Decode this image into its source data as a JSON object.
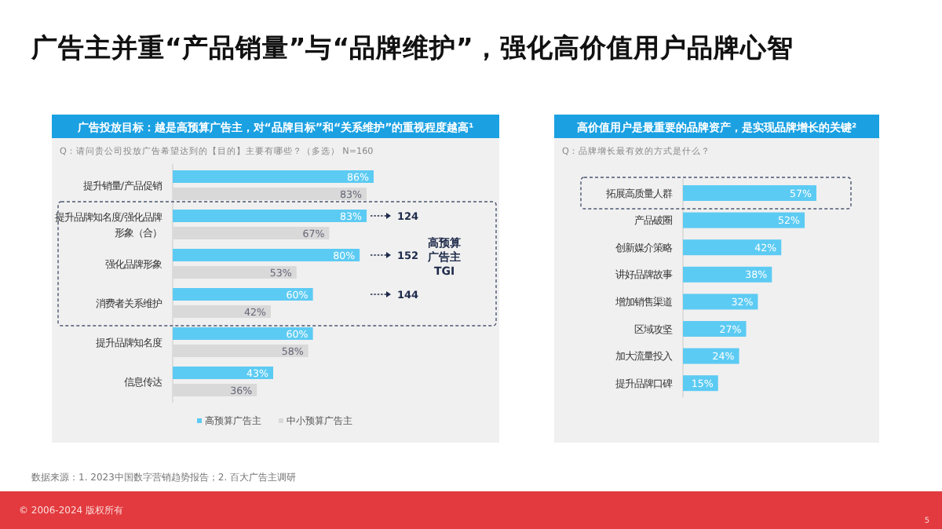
{
  "chart_data": [
    {
      "type": "other",
      "title": "广告主并重“产品销量”与“品牌维护”，强化高价值用户品牌心智",
      "annotations": [
        "数据来源：1. 2023中国数字营销趋势报告；2. 百大广告主调研",
        "© 2006-2024 版权所有",
        "5"
      ]
    },
    {
      "type": "bar",
      "orientation": "horizontal",
      "title": "广告投放目标：越是高预算广告主，对“品牌目标”和“关系维护”的重视程度越高¹",
      "subtitle": "Q：请问贵公司投放广告希望达到的【目的】主要有哪些？（多选） N=160",
      "categories": [
        "提升销量/产品促销",
        "提升品牌知名度/强化品牌形象（合）",
        "强化品牌形象",
        "消费者关系维护",
        "提升品牌知名度",
        "信息传达"
      ],
      "series": [
        {
          "name": "高预算广告主",
          "color": "#5ccbf3",
          "values": [
            86,
            83,
            80,
            60,
            60,
            43
          ],
          "value_labels": [
            "86%",
            "83%",
            "80%",
            "60%",
            "60%",
            "43%"
          ]
        },
        {
          "name": "中小预算广告主",
          "color": "#d9d9d9",
          "values": [
            83,
            67,
            53,
            42,
            58,
            36
          ],
          "value_labels": [
            "83%",
            "67%",
            "53%",
            "42%",
            "58%",
            "36%"
          ]
        }
      ],
      "legend": "bottom",
      "annotations": [
        "124",
        "152",
        "144",
        "高预算广告主TGI"
      ]
    },
    {
      "type": "bar",
      "orientation": "horizontal",
      "title": "高价值用户是最重要的品牌资产，是实现品牌增长的关键²",
      "subtitle": "Q：品牌增长最有效的方式是什么？",
      "categories": [
        "拓展高质量人群",
        "产品破圈",
        "创新媒介策略",
        "讲好品牌故事",
        "增加销售渠道",
        "区域攻坚",
        "加大流量投入",
        "提升品牌口碑"
      ],
      "series": [
        {
          "color": "#5ccbf3",
          "values": [
            57,
            52,
            42,
            38,
            32,
            27,
            24,
            15
          ],
          "value_labels": [
            "57%",
            "52%",
            "42%",
            "38%",
            "32%",
            "27%",
            "24%",
            "15%"
          ]
        }
      ],
      "legend": false
    }
  ]
}
